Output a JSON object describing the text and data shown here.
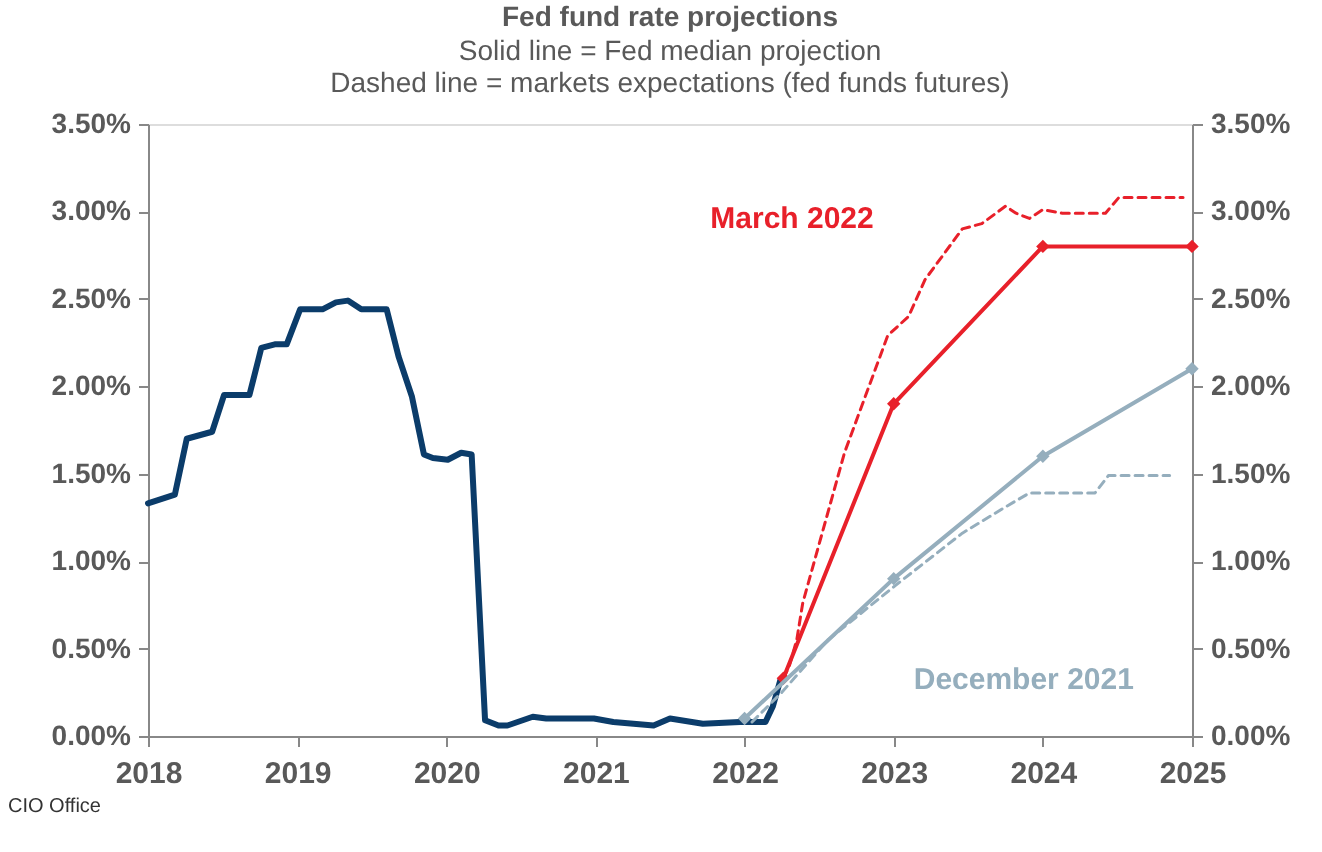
{
  "chart_data": {
    "type": "line",
    "title": "Fed fund rate projections",
    "subtitle": "Solid line = Fed median projection\nDashed line = markets expectations (fed funds futures)",
    "annotations": [
      "CIO Office"
    ],
    "series": [
      {
        "color": "#0b3c6a",
        "line_style": "solid",
        "marker": "none",
        "x": [
          2018.0,
          2018.18,
          2018.26,
          2018.43,
          2018.51,
          2018.68,
          2018.76,
          2018.85,
          2018.93,
          2019.02,
          2019.17,
          2019.26,
          2019.34,
          2019.43,
          2019.6,
          2019.68,
          2019.77,
          2019.85,
          2019.91,
          2020.01,
          2020.1,
          2020.17,
          2020.26,
          2020.35,
          2020.41,
          2020.58,
          2020.67,
          2020.9,
          2020.99,
          2021.12,
          2021.39,
          2021.5,
          2021.72,
          2021.97,
          2022.14,
          2022.19,
          2022.24
        ],
        "values": [
          1.33,
          1.38,
          1.7,
          1.74,
          1.95,
          1.95,
          2.22,
          2.24,
          2.24,
          2.44,
          2.44,
          2.48,
          2.49,
          2.44,
          2.44,
          2.17,
          1.94,
          1.61,
          1.59,
          1.58,
          1.62,
          1.61,
          0.09,
          0.06,
          0.06,
          0.11,
          0.1,
          0.1,
          0.1,
          0.08,
          0.06,
          0.1,
          0.07,
          0.08,
          0.08,
          0.17,
          0.32
        ]
      },
      {
        "name": "March 2022",
        "color": "#e8202a",
        "line_style": "solid",
        "marker": "diamond",
        "x": [
          2022.26,
          2023,
          2024,
          2025
        ],
        "values": [
          0.33,
          1.9,
          2.8,
          2.8
        ]
      },
      {
        "color": "#e8202a",
        "line_style": "dashed",
        "marker": "none",
        "x": [
          2022.26,
          2022.3,
          2022.35,
          2022.39,
          2022.67,
          2022.96,
          2023.1,
          2023.21,
          2023.46,
          2023.59,
          2023.75,
          2023.82,
          2023.91,
          2024.0,
          2024.13,
          2024.42,
          2024.51,
          2024.94
        ],
        "values": [
          0.33,
          0.4,
          0.55,
          0.76,
          1.62,
          2.29,
          2.4,
          2.61,
          2.9,
          2.93,
          3.03,
          2.99,
          2.96,
          3.01,
          2.99,
          2.99,
          3.08,
          3.08
        ]
      },
      {
        "name": "December 2021",
        "color": "#95aebd",
        "line_style": "solid",
        "marker": "diamond",
        "x": [
          2022,
          2023,
          2024,
          2025
        ],
        "values": [
          0.1,
          0.9,
          1.6,
          2.1
        ]
      },
      {
        "color": "#95aebd",
        "line_style": "dashed",
        "marker": "none",
        "x": [
          2022.05,
          2022.25,
          2022.56,
          2023.01,
          2023.46,
          2023.73,
          2023.91,
          2024.35,
          2024.44,
          2024.85
        ],
        "values": [
          0.08,
          0.25,
          0.55,
          0.86,
          1.16,
          1.3,
          1.39,
          1.39,
          1.49,
          1.49
        ]
      }
    ],
    "xlim": [
      2018,
      2025
    ],
    "xticks": [
      2018,
      2019,
      2020,
      2021,
      2022,
      2023,
      2024,
      2025
    ],
    "ylim": [
      0,
      3.5
    ],
    "yticks": [
      {
        "value": 0,
        "label": "0.00%"
      },
      {
        "value": 0.5,
        "label": "0.50%"
      },
      {
        "value": 1,
        "label": "1.00%"
      },
      {
        "value": 1.5,
        "label": "1.50%"
      },
      {
        "value": 2,
        "label": "2.00%"
      },
      {
        "value": 2.5,
        "label": "2.50%"
      },
      {
        "value": 3,
        "label": "3.00%"
      },
      {
        "value": 3.5,
        "label": "3.50%"
      }
    ],
    "y2lim": [
      0,
      3.5
    ],
    "y2ticks": [
      {
        "value": 0,
        "label": "0.00%"
      },
      {
        "value": 0.5,
        "label": "0.50%"
      },
      {
        "value": 1,
        "label": "1.00%"
      },
      {
        "value": 1.5,
        "label": "1.50%"
      },
      {
        "value": 2,
        "label": "2.00%"
      },
      {
        "value": 2.5,
        "label": "2.50%"
      },
      {
        "value": 3,
        "label": "3.00%"
      },
      {
        "value": 3.5,
        "label": "3.50%"
      }
    ],
    "grid": false
  }
}
